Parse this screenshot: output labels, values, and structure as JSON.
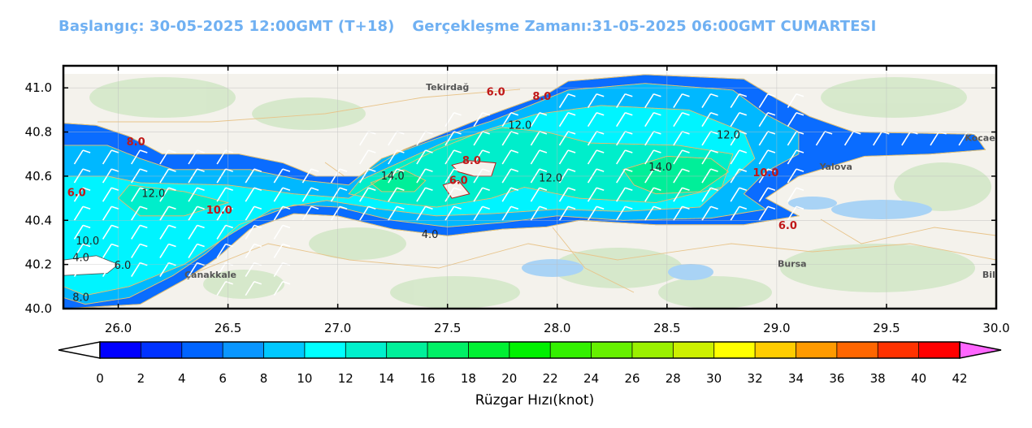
{
  "title": {
    "start": "Başlangıç: 30-05-2025 12:00GMT (T+18)",
    "valid": "Gerçekleşme Zamanı:31-05-2025 06:00GMT CUMARTESI"
  },
  "chart_data": {
    "type": "heatmap",
    "x_ticks": [
      "26.0",
      "26.5",
      "27.0",
      "27.5",
      "28.0",
      "28.5",
      "29.0",
      "29.5",
      "30.0"
    ],
    "y_ticks": [
      "41.0",
      "40.8",
      "40.6",
      "40.4",
      "40.2",
      "40.0"
    ],
    "xlim": [
      25.75,
      30.0
    ],
    "ylim": [
      40.0,
      41.1
    ],
    "contour_labels": [
      {
        "text": "6.0",
        "lon": 27.72,
        "lat": 40.965,
        "color": "red"
      },
      {
        "text": "8.0",
        "lon": 27.93,
        "lat": 40.945,
        "color": "red"
      },
      {
        "text": "12.0",
        "lon": 27.83,
        "lat": 40.815,
        "color": "dark"
      },
      {
        "text": "12.0",
        "lon": 28.78,
        "lat": 40.77,
        "color": "dark"
      },
      {
        "text": "8.0",
        "lon": 26.08,
        "lat": 40.74,
        "color": "red"
      },
      {
        "text": "8.0",
        "lon": 27.61,
        "lat": 40.655,
        "color": "red"
      },
      {
        "text": "14.0",
        "lon": 27.25,
        "lat": 40.585,
        "color": "dark"
      },
      {
        "text": "14.0",
        "lon": 28.47,
        "lat": 40.625,
        "color": "dark"
      },
      {
        "text": "6.0",
        "lon": 27.55,
        "lat": 40.565,
        "color": "red"
      },
      {
        "text": "12.0",
        "lon": 27.97,
        "lat": 40.575,
        "color": "dark"
      },
      {
        "text": "10.0",
        "lon": 28.95,
        "lat": 40.6,
        "color": "red"
      },
      {
        "text": "6.0",
        "lon": 25.81,
        "lat": 40.51,
        "color": "red"
      },
      {
        "text": "12.0",
        "lon": 26.16,
        "lat": 40.505,
        "color": "dark"
      },
      {
        "text": "10.0",
        "lon": 26.46,
        "lat": 40.43,
        "color": "red"
      },
      {
        "text": "4.0",
        "lon": 27.42,
        "lat": 40.32,
        "color": "dark"
      },
      {
        "text": "6.0",
        "lon": 29.05,
        "lat": 40.36,
        "color": "red"
      },
      {
        "text": "10.0",
        "lon": 25.86,
        "lat": 40.29,
        "color": "dark"
      },
      {
        "text": "4.0",
        "lon": 25.83,
        "lat": 40.215,
        "color": "dark"
      },
      {
        "text": "6.0",
        "lon": 26.02,
        "lat": 40.18,
        "color": "dark"
      },
      {
        "text": "8.0",
        "lon": 25.83,
        "lat": 40.035,
        "color": "dark"
      }
    ],
    "place_labels": [
      {
        "text": "Tekirdağ",
        "lon": 27.5,
        "lat": 40.99
      },
      {
        "text": "Yalova",
        "lon": 29.27,
        "lat": 40.63
      },
      {
        "text": "Bursa",
        "lon": 29.07,
        "lat": 40.19
      },
      {
        "text": "Kocaeli",
        "lon": 29.94,
        "lat": 40.76
      },
      {
        "text": "Çanakkale",
        "lon": 26.42,
        "lat": 40.14
      },
      {
        "text": "Bile",
        "lon": 29.98,
        "lat": 40.14
      }
    ],
    "colorbar": {
      "title": "Rüzgar Hızı(knot)",
      "ticks": [
        "0",
        "2",
        "4",
        "6",
        "8",
        "10",
        "12",
        "14",
        "16",
        "18",
        "20",
        "22",
        "24",
        "26",
        "28",
        "30",
        "32",
        "34",
        "36",
        "38",
        "40",
        "42"
      ],
      "colors": [
        "#0000ff",
        "#0032ff",
        "#0064ff",
        "#0a96ff",
        "#00c8ff",
        "#00ffff",
        "#00f0cc",
        "#00f09a",
        "#00f066",
        "#00f033",
        "#00f000",
        "#33f000",
        "#66f000",
        "#9af000",
        "#ccf000",
        "#ffff00",
        "#ffcc00",
        "#ff9a00",
        "#ff6600",
        "#ff3200",
        "#ff0000"
      ],
      "over_color": "#ff66ff",
      "under_color": "#ffffff"
    }
  }
}
